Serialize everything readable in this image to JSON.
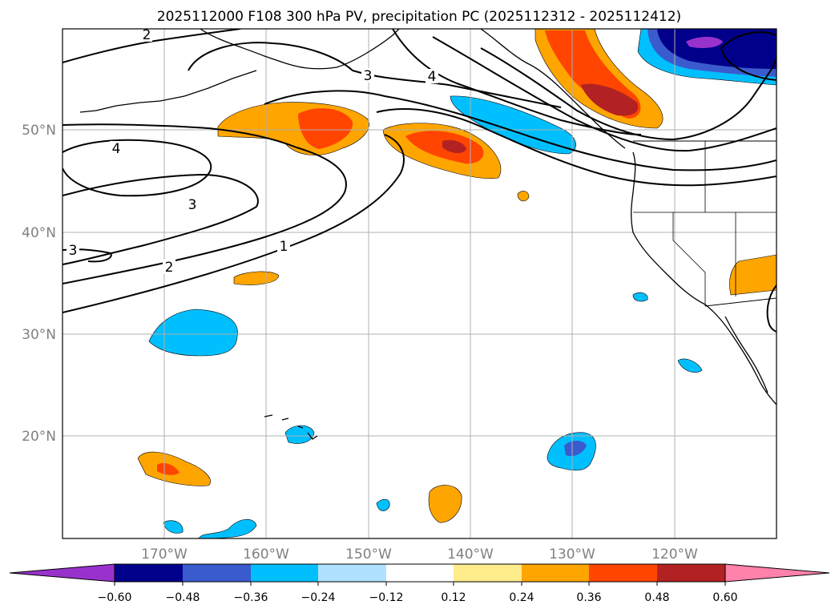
{
  "title": "2025112000 F108 300 hPa PV, precipitation PC (2025112312 - 2025112412)",
  "map": {
    "lon_range": [
      -180,
      -110
    ],
    "lat_range": [
      10,
      60
    ],
    "lat_gridlines": [
      {
        "lat": 50,
        "label": "50°N"
      },
      {
        "lat": 40,
        "label": "40°N"
      },
      {
        "lat": 30,
        "label": "30°N"
      },
      {
        "lat": 20,
        "label": "20°N"
      }
    ],
    "lon_gridlines": [
      {
        "lon": -170,
        "label": "170°W"
      },
      {
        "lon": -160,
        "label": "160°W"
      },
      {
        "lon": -150,
        "label": "150°W"
      },
      {
        "lon": -140,
        "label": "140°W"
      },
      {
        "lon": -130,
        "label": "130°W"
      },
      {
        "lon": -120,
        "label": "120°W"
      }
    ],
    "contour_labels": [
      "2",
      "3",
      "4",
      "4",
      "3",
      "1",
      "2",
      "3"
    ]
  },
  "colorbar": {
    "ticks": [
      "−0.60",
      "−0.48",
      "−0.36",
      "−0.24",
      "−0.12",
      "0.12",
      "0.24",
      "0.36",
      "0.48",
      "0.60"
    ],
    "colors": [
      "#9932CC",
      "#00008B",
      "#3A5BCD",
      "#00BFFF",
      "#B0E2FF",
      "#FFFFFF",
      "#FFEC8B",
      "#FFA500",
      "#FF4500",
      "#B22222",
      "#FF82AB"
    ]
  }
}
